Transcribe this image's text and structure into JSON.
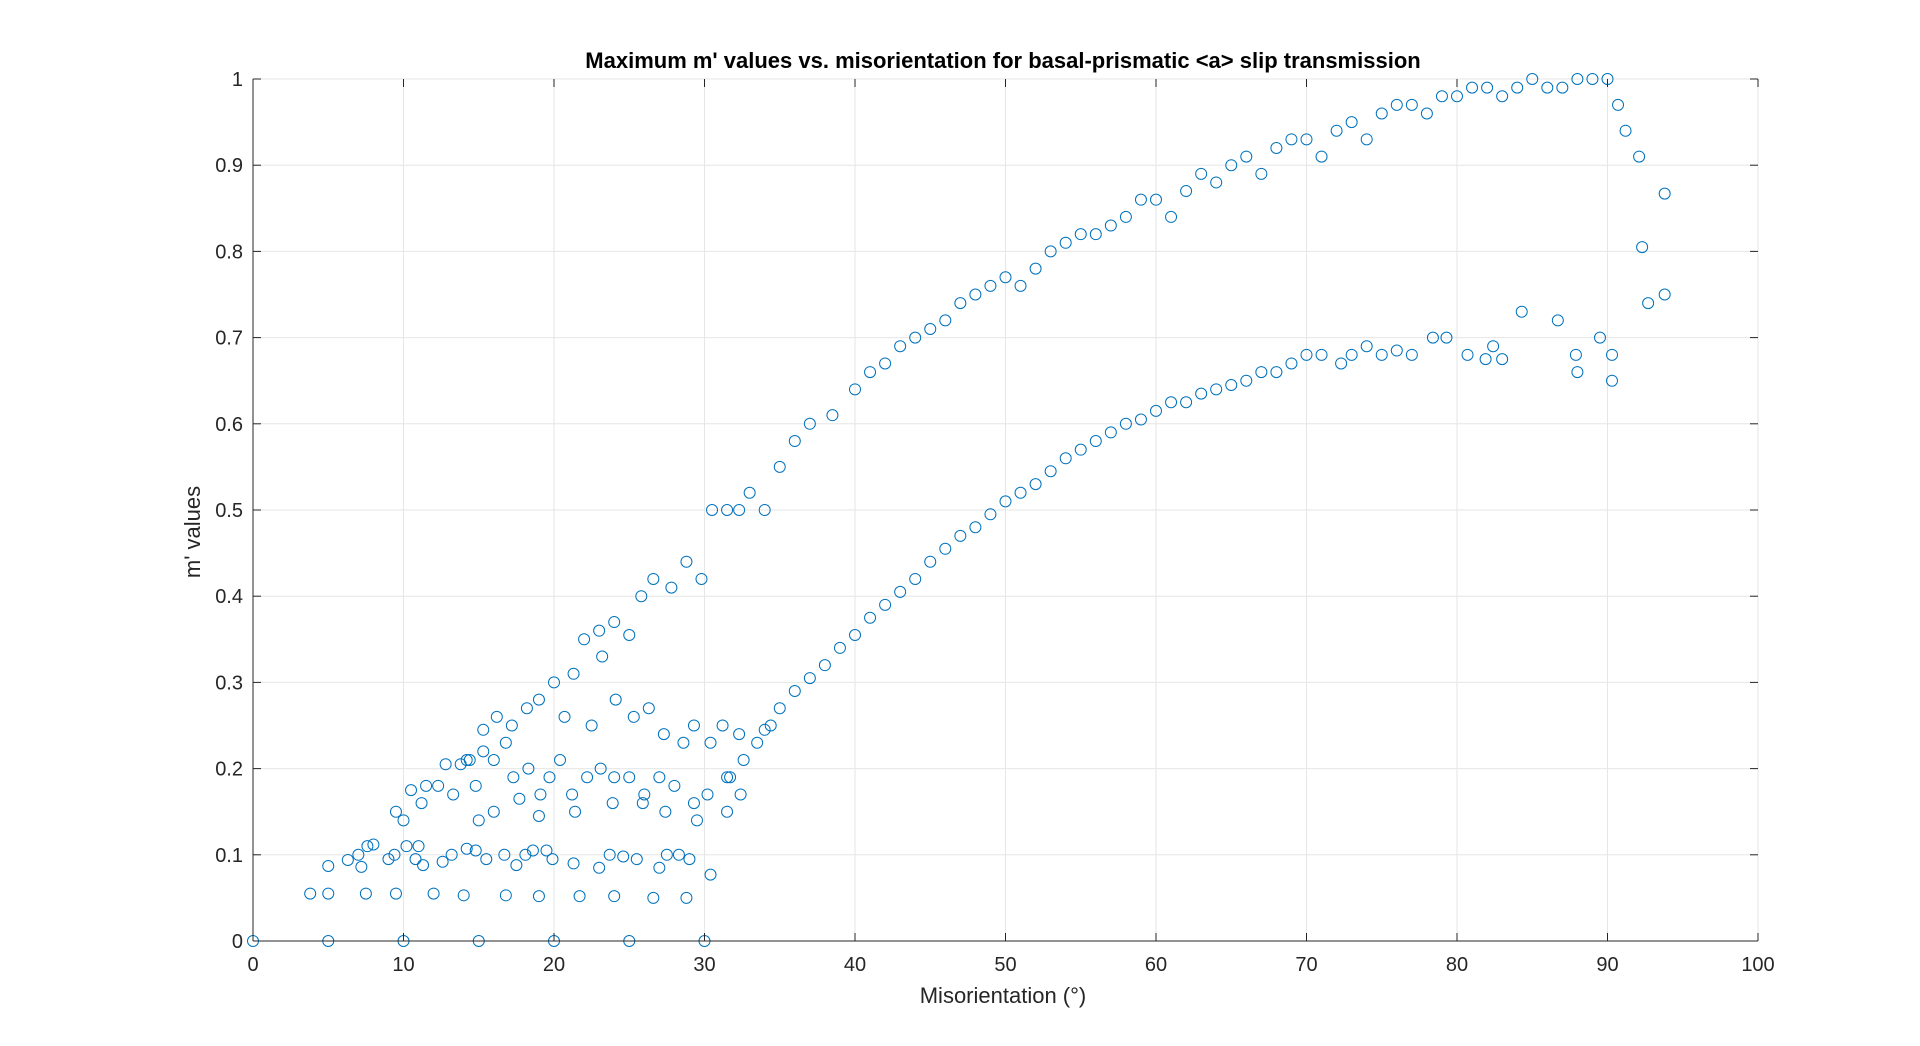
{
  "chart_data": {
    "type": "scatter",
    "title": "Maximum m' values vs. misorientation for basal-prismatic <a> slip transmission",
    "xlabel": "Misorientation (°)",
    "ylabel": "m' values",
    "xlim": [
      0,
      100
    ],
    "ylim": [
      0,
      1
    ],
    "xticks": [
      "0",
      "10",
      "20",
      "30",
      "40",
      "50",
      "60",
      "70",
      "80",
      "90",
      "100"
    ],
    "yticks": [
      "0",
      "0.1",
      "0.2",
      "0.3",
      "0.4",
      "0.5",
      "0.6",
      "0.7",
      "0.8",
      "0.9",
      "1"
    ],
    "grid": true,
    "marker": "circle-open",
    "series": [
      {
        "color": "#0072BD",
        "points": [
          [
            0,
            0
          ],
          [
            5,
            0
          ],
          [
            10,
            0
          ],
          [
            15,
            0
          ],
          [
            20,
            0
          ],
          [
            25,
            0
          ],
          [
            30,
            0
          ],
          [
            3.8,
            0.055
          ],
          [
            5,
            0.055
          ],
          [
            7.5,
            0.055
          ],
          [
            9.5,
            0.055
          ],
          [
            12,
            0.055
          ],
          [
            14,
            0.053
          ],
          [
            16.8,
            0.053
          ],
          [
            19,
            0.052
          ],
          [
            21.7,
            0.052
          ],
          [
            24,
            0.052
          ],
          [
            26.6,
            0.05
          ],
          [
            28.8,
            0.05
          ],
          [
            5,
            0.087
          ],
          [
            6.3,
            0.094
          ],
          [
            7,
            0.1
          ],
          [
            7.2,
            0.086
          ],
          [
            7.6,
            0.11
          ],
          [
            8,
            0.112
          ],
          [
            9,
            0.095
          ],
          [
            9.4,
            0.1
          ],
          [
            10.2,
            0.11
          ],
          [
            10.8,
            0.095
          ],
          [
            11,
            0.11
          ],
          [
            11.3,
            0.088
          ],
          [
            12.6,
            0.092
          ],
          [
            13.2,
            0.1
          ],
          [
            14.2,
            0.107
          ],
          [
            14.8,
            0.105
          ],
          [
            15.5,
            0.095
          ],
          [
            16.7,
            0.1
          ],
          [
            17.5,
            0.088
          ],
          [
            18.1,
            0.1
          ],
          [
            18.6,
            0.105
          ],
          [
            19.5,
            0.105
          ],
          [
            19.9,
            0.095
          ],
          [
            21.3,
            0.09
          ],
          [
            23,
            0.085
          ],
          [
            23.7,
            0.1
          ],
          [
            24.6,
            0.098
          ],
          [
            25.5,
            0.095
          ],
          [
            27,
            0.085
          ],
          [
            27.5,
            0.1
          ],
          [
            28.3,
            0.1
          ],
          [
            29,
            0.095
          ],
          [
            30.4,
            0.077
          ],
          [
            9.5,
            0.15
          ],
          [
            10,
            0.14
          ],
          [
            10.5,
            0.175
          ],
          [
            11.2,
            0.16
          ],
          [
            11.5,
            0.18
          ],
          [
            12.3,
            0.18
          ],
          [
            12.8,
            0.205
          ],
          [
            13.3,
            0.17
          ],
          [
            13.8,
            0.205
          ],
          [
            14.2,
            0.21
          ],
          [
            14.8,
            0.18
          ],
          [
            15.3,
            0.22
          ],
          [
            16,
            0.21
          ],
          [
            16.8,
            0.23
          ],
          [
            17.3,
            0.19
          ],
          [
            18.3,
            0.2
          ],
          [
            19.1,
            0.17
          ],
          [
            19.7,
            0.19
          ],
          [
            20.4,
            0.21
          ],
          [
            21.2,
            0.17
          ],
          [
            22.2,
            0.19
          ],
          [
            23.1,
            0.2
          ],
          [
            24,
            0.19
          ],
          [
            25,
            0.19
          ],
          [
            26,
            0.17
          ],
          [
            27,
            0.19
          ],
          [
            28,
            0.18
          ],
          [
            29.3,
            0.16
          ],
          [
            30.2,
            0.17
          ],
          [
            31.7,
            0.19
          ],
          [
            32.4,
            0.17
          ],
          [
            15,
            0.14
          ],
          [
            16,
            0.15
          ],
          [
            17.7,
            0.165
          ],
          [
            19,
            0.145
          ],
          [
            21.4,
            0.15
          ],
          [
            23.9,
            0.16
          ],
          [
            25.9,
            0.16
          ],
          [
            27.4,
            0.15
          ],
          [
            29.5,
            0.14
          ],
          [
            31.5,
            0.15
          ],
          [
            14.4,
            0.21
          ],
          [
            15.3,
            0.245
          ],
          [
            16.2,
            0.26
          ],
          [
            17.2,
            0.25
          ],
          [
            18.2,
            0.27
          ],
          [
            19,
            0.28
          ],
          [
            20,
            0.3
          ],
          [
            20.7,
            0.26
          ],
          [
            21.3,
            0.31
          ],
          [
            22.5,
            0.25
          ],
          [
            23.2,
            0.33
          ],
          [
            24.1,
            0.28
          ],
          [
            25.3,
            0.26
          ],
          [
            26.3,
            0.27
          ],
          [
            27.3,
            0.24
          ],
          [
            28.6,
            0.23
          ],
          [
            29.3,
            0.25
          ],
          [
            30.4,
            0.23
          ],
          [
            31.2,
            0.25
          ],
          [
            32.3,
            0.24
          ],
          [
            34,
            0.245
          ],
          [
            22,
            0.35
          ],
          [
            23,
            0.36
          ],
          [
            24,
            0.37
          ],
          [
            25,
            0.355
          ],
          [
            25.8,
            0.4
          ],
          [
            26.6,
            0.42
          ],
          [
            27.8,
            0.41
          ],
          [
            28.8,
            0.44
          ],
          [
            29.8,
            0.42
          ],
          [
            30.5,
            0.5
          ],
          [
            31.5,
            0.5
          ],
          [
            32.3,
            0.5
          ],
          [
            33,
            0.52
          ],
          [
            34,
            0.5
          ],
          [
            35,
            0.55
          ],
          [
            36,
            0.58
          ],
          [
            37,
            0.6
          ],
          [
            38.5,
            0.61
          ],
          [
            40,
            0.64
          ],
          [
            41,
            0.66
          ],
          [
            42,
            0.67
          ],
          [
            43,
            0.69
          ],
          [
            44,
            0.7
          ],
          [
            45,
            0.71
          ],
          [
            46,
            0.72
          ],
          [
            47,
            0.74
          ],
          [
            48,
            0.75
          ],
          [
            49,
            0.76
          ],
          [
            50,
            0.77
          ],
          [
            51,
            0.76
          ],
          [
            52,
            0.78
          ],
          [
            53,
            0.8
          ],
          [
            54,
            0.81
          ],
          [
            55,
            0.82
          ],
          [
            56,
            0.82
          ],
          [
            57,
            0.83
          ],
          [
            58,
            0.84
          ],
          [
            59,
            0.86
          ],
          [
            60,
            0.86
          ],
          [
            61,
            0.84
          ],
          [
            62,
            0.87
          ],
          [
            63,
            0.89
          ],
          [
            64,
            0.88
          ],
          [
            65,
            0.9
          ],
          [
            66,
            0.91
          ],
          [
            67,
            0.89
          ],
          [
            68,
            0.92
          ],
          [
            69,
            0.93
          ],
          [
            70,
            0.93
          ],
          [
            71,
            0.91
          ],
          [
            72,
            0.94
          ],
          [
            73,
            0.95
          ],
          [
            74,
            0.93
          ],
          [
            75,
            0.96
          ],
          [
            76,
            0.97
          ],
          [
            77,
            0.97
          ],
          [
            78,
            0.96
          ],
          [
            79,
            0.98
          ],
          [
            80,
            0.98
          ],
          [
            81,
            0.99
          ],
          [
            82,
            0.99
          ],
          [
            83,
            0.98
          ],
          [
            84,
            0.99
          ],
          [
            85,
            1.0
          ],
          [
            86,
            0.99
          ],
          [
            87,
            0.99
          ],
          [
            88,
            1.0
          ],
          [
            89,
            1.0
          ],
          [
            90,
            1.0
          ],
          [
            90.7,
            0.97
          ],
          [
            91.2,
            0.94
          ],
          [
            92.1,
            0.91
          ],
          [
            93.8,
            0.867
          ],
          [
            92.3,
            0.805
          ],
          [
            93.8,
            0.75
          ],
          [
            92.7,
            0.74
          ],
          [
            90.3,
            0.65
          ],
          [
            90.3,
            0.68
          ],
          [
            89.5,
            0.7
          ],
          [
            88,
            0.66
          ],
          [
            87.9,
            0.68
          ],
          [
            86.7,
            0.72
          ],
          [
            84.3,
            0.73
          ],
          [
            83,
            0.675
          ],
          [
            82.4,
            0.69
          ],
          [
            81.9,
            0.675
          ],
          [
            80.7,
            0.68
          ],
          [
            79.3,
            0.7
          ],
          [
            78.4,
            0.7
          ],
          [
            77,
            0.68
          ],
          [
            76,
            0.685
          ],
          [
            75,
            0.68
          ],
          [
            74,
            0.69
          ],
          [
            73,
            0.68
          ],
          [
            72.3,
            0.67
          ],
          [
            71,
            0.68
          ],
          [
            70,
            0.68
          ],
          [
            69,
            0.67
          ],
          [
            68,
            0.66
          ],
          [
            67,
            0.66
          ],
          [
            66,
            0.65
          ],
          [
            65,
            0.645
          ],
          [
            64,
            0.64
          ],
          [
            63,
            0.635
          ],
          [
            62,
            0.625
          ],
          [
            61,
            0.625
          ],
          [
            60,
            0.615
          ],
          [
            59,
            0.605
          ],
          [
            58,
            0.6
          ],
          [
            57,
            0.59
          ],
          [
            56,
            0.58
          ],
          [
            55,
            0.57
          ],
          [
            54,
            0.56
          ],
          [
            53,
            0.545
          ],
          [
            52,
            0.53
          ],
          [
            51,
            0.52
          ],
          [
            50,
            0.51
          ],
          [
            49,
            0.495
          ],
          [
            48,
            0.48
          ],
          [
            47,
            0.47
          ],
          [
            46,
            0.455
          ],
          [
            45,
            0.44
          ],
          [
            44,
            0.42
          ],
          [
            43,
            0.405
          ],
          [
            42,
            0.39
          ],
          [
            41,
            0.375
          ],
          [
            40,
            0.355
          ],
          [
            39,
            0.34
          ],
          [
            38,
            0.32
          ],
          [
            37,
            0.305
          ],
          [
            36,
            0.29
          ],
          [
            35,
            0.27
          ],
          [
            34.4,
            0.25
          ],
          [
            33.5,
            0.23
          ],
          [
            32.6,
            0.21
          ],
          [
            31.5,
            0.19
          ]
        ]
      }
    ]
  }
}
